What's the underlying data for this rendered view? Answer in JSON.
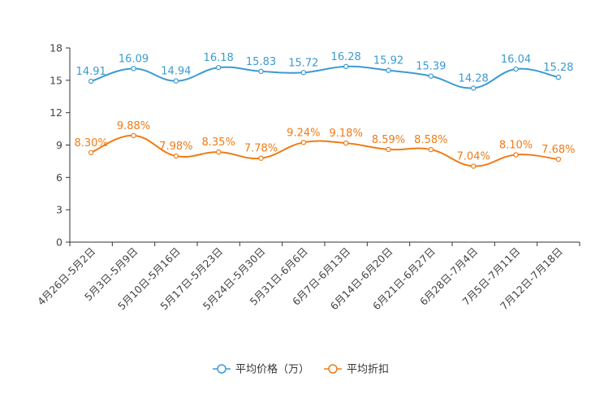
{
  "chart_data": {
    "type": "line",
    "title": "",
    "xlabel": "",
    "ylabel": "",
    "ylim": [
      0,
      18
    ],
    "yticks": [
      0,
      3,
      6,
      9,
      12,
      15,
      18
    ],
    "grid": false,
    "legend_position": "bottom",
    "categories": [
      "4月26日-5月2日",
      "5月3日-5月9日",
      "5月10日-5月16日",
      "5月17日-5月23日",
      "5月24日-5月30日",
      "5月31日-6月6日",
      "6月7日-6月13日",
      "6月14日-6月20日",
      "6月21日-6月27日",
      "6月28日-7月4日",
      "7月5日-7月11日",
      "7月12日-7月18日"
    ],
    "series": [
      {
        "name": "平均价格（万）",
        "color": "#3a9bd1",
        "values": [
          14.91,
          16.09,
          14.94,
          16.18,
          15.83,
          15.72,
          16.28,
          15.92,
          15.39,
          14.28,
          16.04,
          15.28
        ],
        "labels": [
          "14.91",
          "16.09",
          "14.94",
          "16.18",
          "15.83",
          "15.72",
          "16.28",
          "15.92",
          "15.39",
          "14.28",
          "16.04",
          "15.28"
        ]
      },
      {
        "name": "平均折扣",
        "color": "#f07b16",
        "values": [
          8.3,
          9.88,
          7.98,
          8.35,
          7.78,
          9.24,
          9.18,
          8.59,
          8.58,
          7.04,
          8.1,
          7.68
        ],
        "labels": [
          "8.30%",
          "9.88%",
          "7.98%",
          "8.35%",
          "7.78%",
          "9.24%",
          "9.18%",
          "8.59%",
          "8.58%",
          "7.04%",
          "8.10%",
          "7.68%"
        ]
      }
    ]
  }
}
